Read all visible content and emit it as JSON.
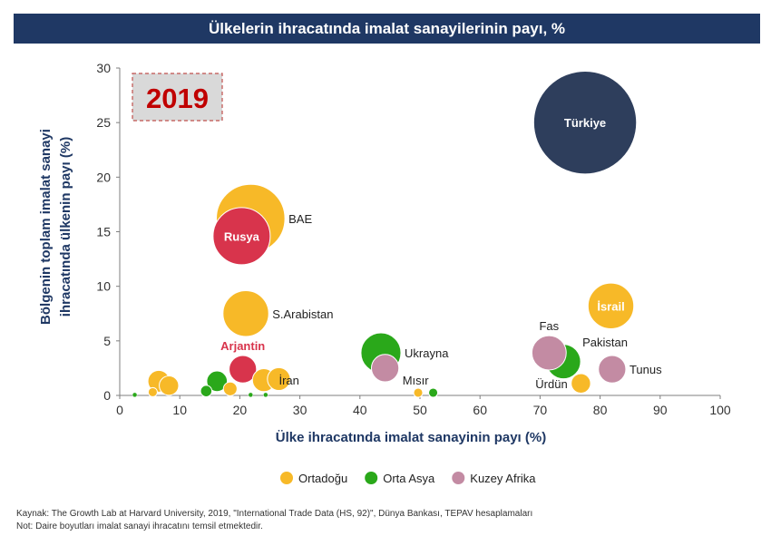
{
  "title": "Ülkelerin ihracatında imalat sanayilerinin payı, %",
  "year_badge": "2019",
  "footnotes": {
    "source": "Kaynak: The Growth Lab at Harvard University, 2019, \"International Trade Data (HS, 92)\", Dünya Bankası, TEPAV hesaplamaları",
    "note": "Not: Daire boyutları imalat sanayi ihracatını temsil etmektedir."
  },
  "colors": {
    "Ortadoğu": "#f7b928",
    "Orta Asya": "#2aa81a",
    "Kuzey Afrika": "#c38ba3",
    "Türkiye": "#2e3e5c",
    "Rusya": "#d8344c",
    "Arjantin": "#d8344c",
    "title_bg": "#1f3864",
    "axis_title": "#1f3864",
    "badge_text": "#c00000"
  },
  "chart_data": {
    "type": "scatter",
    "subtype": "bubble",
    "title": "Ülkelerin ihracatında imalat sanayilerinin payı, %",
    "xlabel": "Ülke ihracatında imalat sanayinin payı (%)",
    "ylabel_lines": [
      "Bölgenin toplam imalat sanayi",
      "ihracatında ülkenin payı (%)"
    ],
    "xlim": [
      0,
      100
    ],
    "ylim": [
      0,
      30
    ],
    "xticks": [
      0,
      10,
      20,
      30,
      40,
      50,
      60,
      70,
      80,
      90,
      100
    ],
    "yticks": [
      0,
      5,
      10,
      15,
      20,
      25,
      30
    ],
    "legend": [
      "Ortadoğu",
      "Orta Asya",
      "Kuzey Afrika"
    ],
    "legend_position": "bottom",
    "points": [
      {
        "name": "Türkiye",
        "x": 77.5,
        "y": 25.0,
        "size": 9.0,
        "group": "Türkiye",
        "label": "Türkiye",
        "label_pos": "center"
      },
      {
        "name": "BAE",
        "x": 21.8,
        "y": 16.2,
        "size": 6.0,
        "group": "Ortadoğu",
        "label": "BAE",
        "label_pos": "right"
      },
      {
        "name": "Rusya",
        "x": 20.3,
        "y": 14.6,
        "size": 5.0,
        "group": "Rusya",
        "label": "Rusya",
        "label_pos": "center"
      },
      {
        "name": "S.Arabistan",
        "x": 21.0,
        "y": 7.5,
        "size": 4.0,
        "group": "Ortadoğu",
        "label": "S.Arabistan",
        "label_pos": "right"
      },
      {
        "name": "Arjantin",
        "x": 20.5,
        "y": 2.4,
        "size": 2.4,
        "group": "Arjantin",
        "label": "Arjantin",
        "label_pos": "top"
      },
      {
        "name": "İran",
        "x": 24.0,
        "y": 1.4,
        "size": 2.0,
        "group": "Ortadoğu",
        "label": "İran",
        "label_pos": "right"
      },
      {
        "name": "",
        "x": 26.5,
        "y": 1.5,
        "size": 2.0,
        "group": "Ortadoğu",
        "label": "",
        "label_pos": "none"
      },
      {
        "name": "",
        "x": 6.5,
        "y": 1.3,
        "size": 1.9,
        "group": "Ortadoğu",
        "label": "",
        "label_pos": "none"
      },
      {
        "name": "",
        "x": 8.2,
        "y": 0.9,
        "size": 1.7,
        "group": "Ortadoğu",
        "label": "",
        "label_pos": "none"
      },
      {
        "name": "",
        "x": 5.5,
        "y": 0.3,
        "size": 0.8,
        "group": "Ortadoğu",
        "label": "",
        "label_pos": "none"
      },
      {
        "name": "",
        "x": 18.4,
        "y": 0.6,
        "size": 1.2,
        "group": "Ortadoğu",
        "label": "",
        "label_pos": "none"
      },
      {
        "name": "",
        "x": 49.7,
        "y": 0.25,
        "size": 0.8,
        "group": "Ortadoğu",
        "label": "",
        "label_pos": "none"
      },
      {
        "name": "İsrail",
        "x": 81.8,
        "y": 8.2,
        "size": 4.0,
        "group": "Ortadoğu",
        "label": "İsrail",
        "label_pos": "center"
      },
      {
        "name": "Ürdün",
        "x": 76.8,
        "y": 1.1,
        "size": 1.7,
        "group": "Ortadoğu",
        "label": "Ürdün",
        "label_pos": "left"
      },
      {
        "name": "Ukrayna",
        "x": 43.5,
        "y": 3.9,
        "size": 3.5,
        "group": "Orta Asya",
        "label": "Ukrayna",
        "label_pos": "right"
      },
      {
        "name": "",
        "x": 16.2,
        "y": 1.3,
        "size": 1.8,
        "group": "Orta Asya",
        "label": "",
        "label_pos": "none"
      },
      {
        "name": "",
        "x": 14.4,
        "y": 0.4,
        "size": 1.0,
        "group": "Orta Asya",
        "label": "",
        "label_pos": "none"
      },
      {
        "name": "",
        "x": 2.5,
        "y": 0.05,
        "size": 0.4,
        "group": "Orta Asya",
        "label": "",
        "label_pos": "none"
      },
      {
        "name": "",
        "x": 21.8,
        "y": 0.05,
        "size": 0.4,
        "group": "Orta Asya",
        "label": "",
        "label_pos": "none"
      },
      {
        "name": "",
        "x": 24.3,
        "y": 0.05,
        "size": 0.4,
        "group": "Orta Asya",
        "label": "",
        "label_pos": "none"
      },
      {
        "name": "",
        "x": 52.2,
        "y": 0.25,
        "size": 0.8,
        "group": "Orta Asya",
        "label": "",
        "label_pos": "none"
      },
      {
        "name": "Pakistan",
        "x": 73.9,
        "y": 3.1,
        "size": 3.0,
        "group": "Orta Asya",
        "label": "Pakistan",
        "label_pos": "right-up"
      },
      {
        "name": "Fas",
        "x": 71.5,
        "y": 3.9,
        "size": 3.0,
        "group": "Kuzey Afrika",
        "label": "Fas",
        "label_pos": "top"
      },
      {
        "name": "Mısır",
        "x": 44.2,
        "y": 2.5,
        "size": 2.4,
        "group": "Kuzey Afrika",
        "label": "Mısır",
        "label_pos": "right-down"
      },
      {
        "name": "Tunus",
        "x": 82.0,
        "y": 2.4,
        "size": 2.4,
        "group": "Kuzey Afrika",
        "label": "Tunus",
        "label_pos": "right"
      }
    ]
  }
}
